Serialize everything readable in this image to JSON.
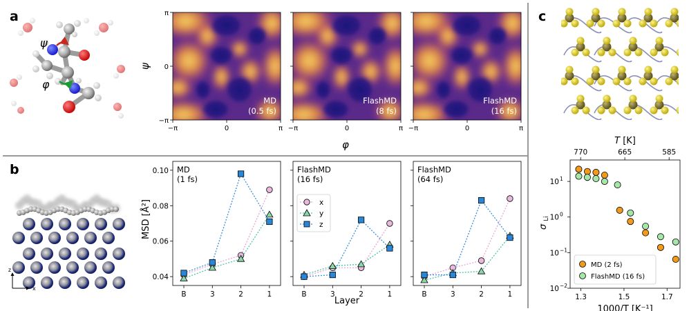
{
  "panel_labels": {
    "a": "a",
    "b": "b",
    "c": "c"
  },
  "colors": {
    "divider": "#9a9a9a",
    "heat_low": "#1a117a",
    "heat_mid": "#c23a7a",
    "heat_high": "#ffe066",
    "x_series": "#e9b9dc",
    "y_series": "#8cd6ab",
    "z_series": "#2a86d6",
    "x_line": "#e8a6d4",
    "y_line": "#4dc6a6",
    "z_line": "#3a8ee0",
    "md": "#f39a1b",
    "flashmd": "#a6e6a9"
  },
  "panel_a": {
    "angle_labels": {
      "psi": "ψ",
      "phi": "φ"
    },
    "heatmaps": [
      {
        "line1": "MD",
        "line2": "(0.5 fs)"
      },
      {
        "line1": "FlashMD",
        "line2": "(8 fs)"
      },
      {
        "line1": "FlashMD",
        "line2": "(16 fs)"
      }
    ],
    "y_axis_label": "ψ",
    "x_axis_label": "φ",
    "y_ticks": [
      "π",
      "0",
      "−π"
    ],
    "x_ticks": [
      "−π",
      "0",
      "π"
    ]
  },
  "panel_b": {
    "axes_label": {
      "z": "z",
      "x": "x"
    },
    "y_axis_label": "MSD [Å²]",
    "x_axis_label": "Layer",
    "y_ticks": [
      "0.10",
      "0.08",
      "0.06",
      "0.04"
    ],
    "x_ticks": [
      "B",
      "3",
      "2",
      "1"
    ],
    "legend": [
      "x",
      "y",
      "z"
    ]
  },
  "panel_c": {
    "top_axis_label": "T [K]",
    "top_ticks": [
      "770",
      "665",
      "585"
    ],
    "bottom_ticks": [
      "1.3",
      "1.5",
      "1.7"
    ],
    "x_axis_label": "1000/T [K⁻¹]",
    "y_axis_label": "σ",
    "y_axis_sub": "Li",
    "y_ticks": [
      {
        "base": "10",
        "exp": "1"
      },
      {
        "base": "10",
        "exp": "0"
      },
      {
        "base": "10",
        "exp": "−1"
      },
      {
        "base": "10",
        "exp": "−2"
      }
    ],
    "legend": [
      "MD (2 fs)",
      "FlashMD (16 fs)"
    ]
  },
  "chart_data": [
    {
      "type": "scatter",
      "title": "MD (1 fs)",
      "xlabel": "Layer",
      "ylabel": "MSD [Å²]",
      "categories": [
        "B",
        "3",
        "2",
        "1"
      ],
      "ylim": [
        0.035,
        0.105
      ],
      "series": [
        {
          "name": "x",
          "values": [
            0.041,
            0.047,
            0.052,
            0.089
          ]
        },
        {
          "name": "y",
          "values": [
            0.039,
            0.045,
            0.05,
            0.075
          ]
        },
        {
          "name": "z",
          "values": [
            0.042,
            0.048,
            0.098,
            0.071
          ]
        }
      ]
    },
    {
      "type": "scatter",
      "title": "FlashMD (16 fs)",
      "xlabel": "Layer",
      "ylabel": "MSD [Å²]",
      "categories": [
        "B",
        "3",
        "2",
        "1"
      ],
      "ylim": [
        0.035,
        0.105
      ],
      "series": [
        {
          "name": "x",
          "values": [
            0.04,
            0.045,
            0.045,
            0.07
          ]
        },
        {
          "name": "y",
          "values": [
            0.041,
            0.046,
            0.047,
            0.058
          ]
        },
        {
          "name": "z",
          "values": [
            0.04,
            0.041,
            0.072,
            0.056
          ]
        }
      ]
    },
    {
      "type": "scatter",
      "title": "FlashMD (64 fs)",
      "xlabel": "Layer",
      "ylabel": "MSD [Å²]",
      "categories": [
        "B",
        "3",
        "2",
        "1"
      ],
      "ylim": [
        0.035,
        0.105
      ],
      "series": [
        {
          "name": "x",
          "values": [
            0.04,
            0.045,
            0.049,
            0.084
          ]
        },
        {
          "name": "y",
          "values": [
            0.038,
            0.042,
            0.043,
            0.063
          ]
        },
        {
          "name": "z",
          "values": [
            0.041,
            0.041,
            0.083,
            0.062
          ]
        }
      ]
    },
    {
      "type": "scatter",
      "title": "",
      "xlabel": "1000/T [K⁻¹]",
      "ylabel": "σ_Li",
      "xlim": [
        1.25,
        1.76
      ],
      "ylim": [
        0.01,
        40
      ],
      "yscale": "log",
      "series": [
        {
          "name": "MD (2 fs)",
          "x": [
            1.29,
            1.33,
            1.37,
            1.41,
            1.48,
            1.53,
            1.6,
            1.67,
            1.74
          ],
          "y": [
            22,
            19,
            18,
            15,
            1.55,
            0.75,
            0.36,
            0.14,
            0.065
          ]
        },
        {
          "name": "FlashMD (16 fs)",
          "x": [
            1.29,
            1.33,
            1.37,
            1.41,
            1.47,
            1.53,
            1.6,
            1.67,
            1.74
          ],
          "y": [
            14,
            13,
            12,
            10,
            8,
            1.3,
            0.55,
            0.28,
            0.2
          ]
        }
      ]
    }
  ]
}
